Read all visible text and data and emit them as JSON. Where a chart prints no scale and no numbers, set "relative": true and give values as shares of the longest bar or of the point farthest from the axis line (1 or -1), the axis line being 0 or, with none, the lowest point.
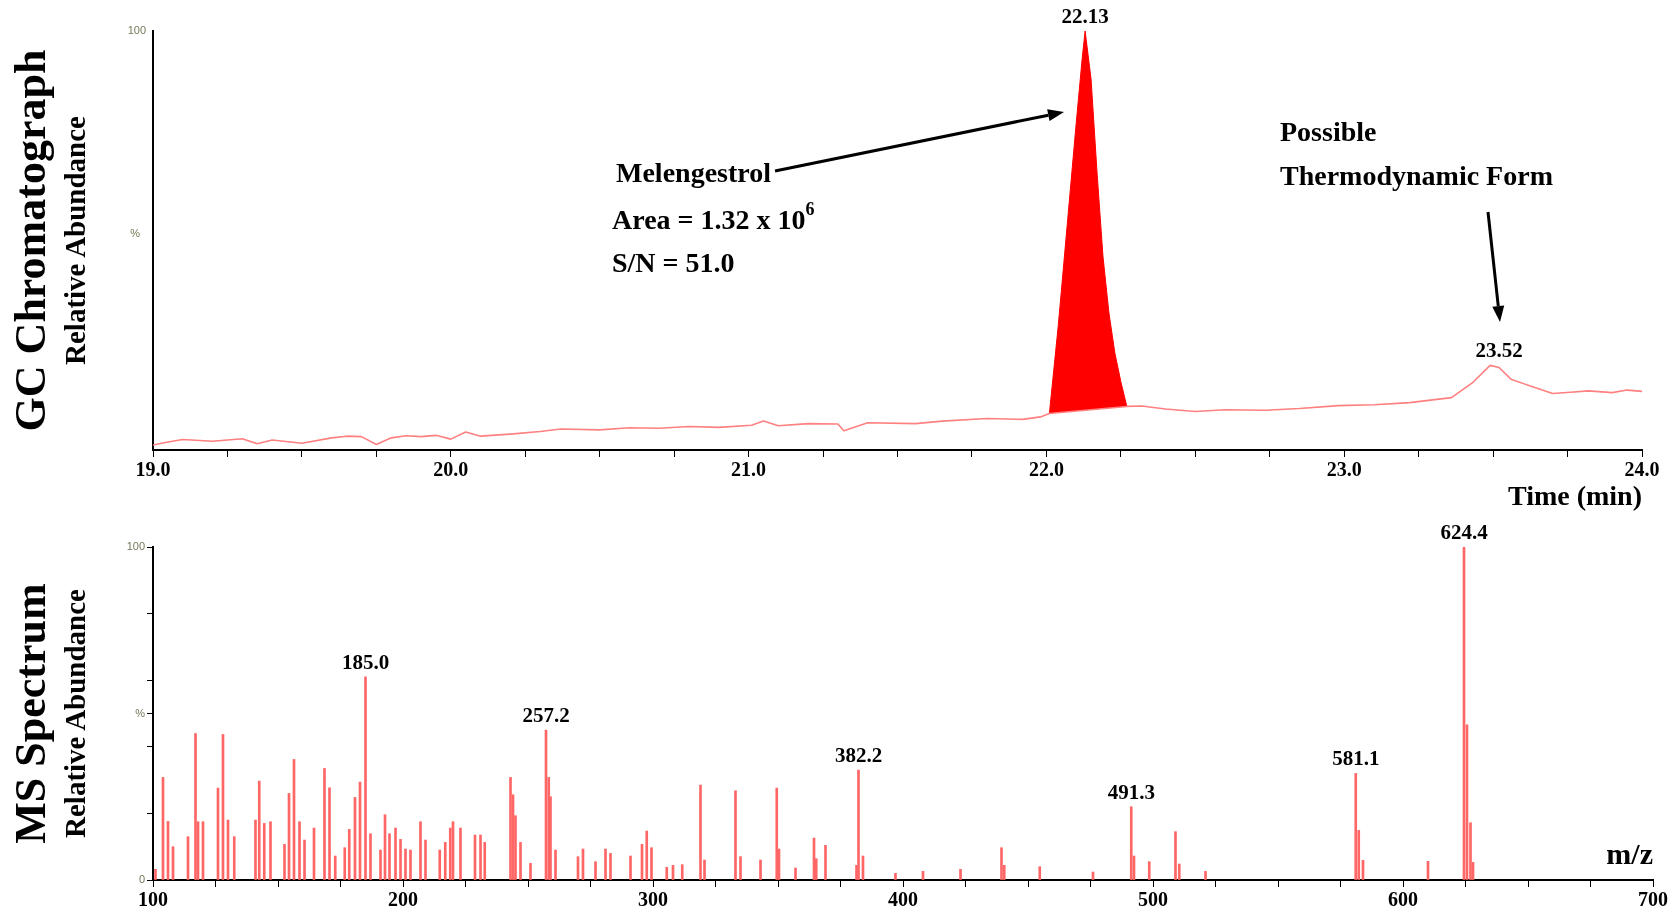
{
  "chart_data": [
    {
      "type": "line",
      "title": "GC Chromatograph",
      "xlabel": "Time (min)",
      "ylabel": "Relative Abundance",
      "marker": "none",
      "relative": true,
      "xlim": [
        19,
        24
      ],
      "xticks": [
        {
          "value": 19,
          "label": "19.0"
        },
        {
          "value": 19.25,
          "label": null
        },
        {
          "value": 19.5,
          "label": null
        },
        {
          "value": 19.75,
          "label": null
        },
        {
          "value": 20,
          "label": "20.0"
        },
        {
          "value": 20.25,
          "label": null
        },
        {
          "value": 20.5,
          "label": null
        },
        {
          "value": 20.75,
          "label": null
        },
        {
          "value": 21,
          "label": "21.0"
        },
        {
          "value": 21.25,
          "label": null
        },
        {
          "value": 21.5,
          "label": null
        },
        {
          "value": 21.75,
          "label": null
        },
        {
          "value": 22,
          "label": "22.0"
        },
        {
          "value": 22.25,
          "label": null
        },
        {
          "value": 22.5,
          "label": null
        },
        {
          "value": 22.75,
          "label": null
        },
        {
          "value": 23,
          "label": "23.0"
        },
        {
          "value": 23.25,
          "label": null
        },
        {
          "value": 23.5,
          "label": null
        },
        {
          "value": 23.75,
          "label": null
        },
        {
          "value": 24,
          "label": "24.0"
        }
      ],
      "series": [
        {
          "type": "line",
          "color": "#ff8080",
          "x": [
            19.0,
            19.05,
            19.1,
            19.2,
            19.3,
            19.35,
            19.4,
            19.5,
            19.6,
            19.65,
            19.7,
            19.75,
            19.8,
            19.85,
            19.9,
            19.95,
            20.0,
            20.05,
            20.1,
            20.2,
            20.3,
            20.37,
            20.5,
            20.6,
            20.7,
            20.8,
            20.9,
            21.01,
            21.05,
            21.1,
            21.2,
            21.3,
            21.32,
            21.4,
            21.56,
            21.65,
            21.8,
            21.92,
            21.98,
            22.01,
            22.27,
            22.32,
            22.4,
            22.5,
            22.6,
            22.74,
            22.85,
            22.98,
            23.1,
            23.22,
            23.36,
            23.43,
            23.49,
            23.52,
            23.56,
            23.62,
            23.7,
            23.76,
            23.82,
            23.9,
            23.95,
            24.0
          ],
          "values": [
            0.012,
            0.019,
            0.025,
            0.021,
            0.027,
            0.015,
            0.024,
            0.016,
            0.029,
            0.033,
            0.032,
            0.013,
            0.029,
            0.034,
            0.032,
            0.035,
            0.026,
            0.043,
            0.033,
            0.038,
            0.044,
            0.05,
            0.048,
            0.053,
            0.052,
            0.056,
            0.054,
            0.059,
            0.069,
            0.058,
            0.063,
            0.062,
            0.046,
            0.065,
            0.063,
            0.069,
            0.075,
            0.073,
            0.079,
            0.087,
            0.104,
            0.105,
            0.098,
            0.092,
            0.096,
            0.095,
            0.099,
            0.106,
            0.108,
            0.113,
            0.125,
            0.16,
            0.202,
            0.197,
            0.169,
            0.154,
            0.135,
            0.138,
            0.141,
            0.137,
            0.143,
            0.14
          ]
        },
        {
          "type": "area",
          "color": "#ff0000",
          "x": [
            22.01,
            22.04,
            22.07,
            22.1,
            22.12,
            22.13,
            22.15,
            22.17,
            22.19,
            22.21,
            22.23,
            22.25,
            22.27
          ],
          "values": [
            0.087,
            0.298,
            0.538,
            0.779,
            0.933,
            1,
            0.885,
            0.663,
            0.462,
            0.327,
            0.231,
            0.163,
            0.104
          ]
        }
      ],
      "annotations": [
        "100",
        "%",
        {
          "text": "22.13",
          "x": 22.13,
          "y": 1
        },
        {
          "text": "23.52",
          "x": 23.52,
          "y": 0.202
        },
        "Melengestrol",
        "Area = 1.32 x 10$^{6}$",
        "S/N = 51.0",
        "Possible Thermodynamic Form"
      ]
    },
    {
      "type": "bar",
      "title": "MS Spectrum",
      "xlabel": "m/z",
      "ylabel": "Relative Abundance",
      "color": "#ff6666",
      "xlim": [
        100,
        700
      ],
      "ylim": [
        0,
        100
      ],
      "xticks": [
        100,
        {
          "value": 125,
          "label": null
        },
        {
          "value": 150,
          "label": null
        },
        {
          "value": 175,
          "label": null
        },
        200,
        {
          "value": 225,
          "label": null
        },
        {
          "value": 250,
          "label": null
        },
        {
          "value": 275,
          "label": null
        },
        300,
        {
          "value": 325,
          "label": null
        },
        {
          "value": 350,
          "label": null
        },
        {
          "value": 375,
          "label": null
        },
        400,
        {
          "value": 425,
          "label": null
        },
        {
          "value": 450,
          "label": null
        },
        {
          "value": 475,
          "label": null
        },
        500,
        {
          "value": 525,
          "label": null
        },
        {
          "value": 550,
          "label": null
        },
        {
          "value": 575,
          "label": null
        },
        600,
        {
          "value": 625,
          "label": null
        },
        {
          "value": 650,
          "label": null
        },
        {
          "value": 675,
          "label": null
        },
        700
      ],
      "yticks": [
        0,
        {
          "value": 20,
          "label": null
        },
        {
          "value": 40,
          "label": null
        },
        {
          "value": 50,
          "label": "%"
        },
        {
          "value": 60,
          "label": null
        },
        {
          "value": 80,
          "label": null
        },
        100
      ],
      "x": [
        101,
        104,
        106,
        108,
        114,
        117,
        118,
        120,
        126,
        128,
        130,
        132.5,
        141,
        142.5,
        144.5,
        147,
        152.6,
        154.4,
        156.4,
        158.6,
        160.6,
        164.4,
        168.6,
        170.6,
        172.9,
        176.7,
        178.5,
        180.8,
        182.8,
        185.0,
        187,
        191,
        192.8,
        194.6,
        197,
        199,
        201,
        203,
        207,
        209,
        214.7,
        216.9,
        218.9,
        220,
        223,
        228.8,
        231,
        232.7,
        243,
        244,
        245,
        247,
        251,
        257.2,
        258.3,
        259,
        261,
        270,
        272,
        277,
        281,
        283,
        291,
        295.6,
        297.5,
        299.4,
        305.5,
        308,
        311.7,
        319,
        320.6,
        333,
        335,
        343,
        349.5,
        350.4,
        357,
        364.4,
        365.3,
        369,
        381.4,
        382.2,
        384,
        397,
        408,
        423,
        439.4,
        440.5,
        454.7,
        476,
        491.3,
        492.4,
        498.5,
        509,
        510.5,
        521,
        581.1,
        582.3,
        584,
        610,
        624.4,
        625.6,
        627,
        628
      ],
      "values": [
        3.2,
        30.8,
        17.6,
        10,
        13,
        44,
        17.5,
        17.5,
        27.6,
        43.7,
        18,
        13,
        18,
        29.7,
        17,
        17.5,
        10.7,
        26,
        36.2,
        17.5,
        12,
        15.6,
        33.5,
        27.7,
        7.2,
        9.7,
        15.2,
        24.8,
        29.4,
        61,
        13.9,
        9,
        19.6,
        13.9,
        15.6,
        12.2,
        9.3,
        9,
        17.5,
        12,
        9,
        11.3,
        15.6,
        17.5,
        15.6,
        13.5,
        13.5,
        11.3,
        30.8,
        25.6,
        19.3,
        11.3,
        5,
        45,
        30.8,
        25,
        9,
        7,
        9.3,
        5.5,
        9.3,
        8,
        7.2,
        10.7,
        14.7,
        9.7,
        3.8,
        4.4,
        4.6,
        28.5,
        6,
        26.8,
        7,
        6,
        27.6,
        9.3,
        3.6,
        12.6,
        6.4,
        10.4,
        4.4,
        33,
        7.2,
        2,
        2.6,
        3.2,
        9.7,
        4.4,
        4,
        2.4,
        22,
        7.2,
        5.5,
        14.5,
        4.8,
        2.6,
        32,
        14.9,
        5.9,
        5.6,
        100,
        46.6,
        17.2,
        5.3
      ],
      "annotations": [
        {
          "text": "185.0",
          "x": 185.0,
          "y": 61
        },
        {
          "text": "257.2",
          "x": 257.2,
          "y": 45
        },
        {
          "text": "382.2",
          "x": 382.2,
          "y": 33
        },
        {
          "text": "491.3",
          "x": 491.3,
          "y": 22
        },
        {
          "text": "581.1",
          "x": 581.1,
          "y": 32
        },
        {
          "text": "624.4",
          "x": 624.4,
          "y": 100
        }
      ]
    }
  ]
}
